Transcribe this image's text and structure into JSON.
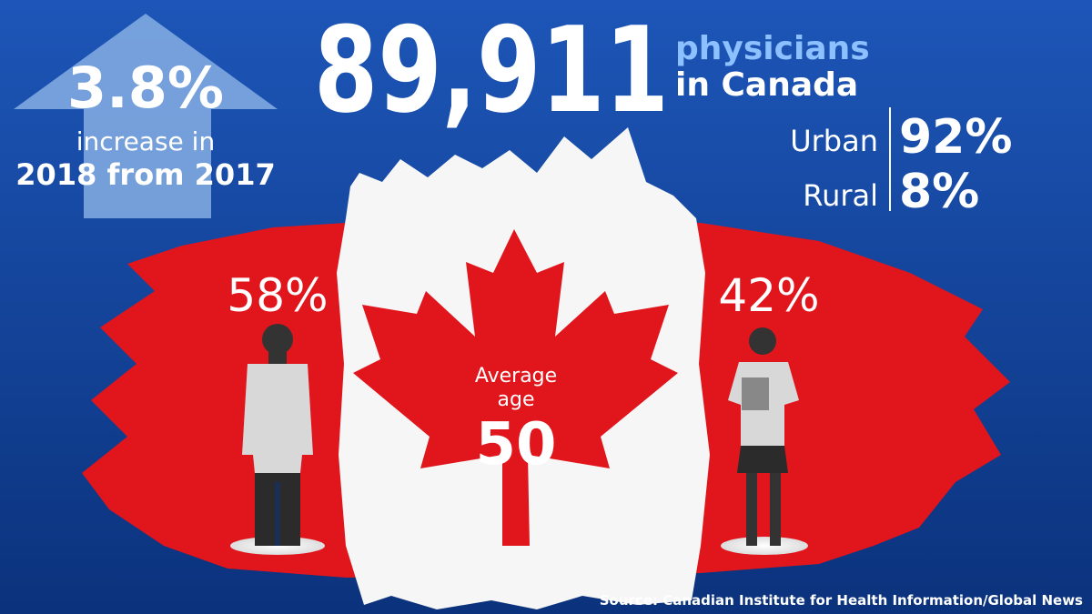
{
  "growth": {
    "value": "3.8%",
    "line1": "increase in",
    "line2": "2018 from 2017"
  },
  "total": {
    "value": "89,911",
    "label1": "physicians",
    "label2": "in Canada"
  },
  "setting": [
    {
      "label": "Urban",
      "value": "92%"
    },
    {
      "label": "Rural",
      "value": "8%"
    }
  ],
  "gender": [
    {
      "value": "58%"
    },
    {
      "value": "42%"
    }
  ],
  "age": {
    "label1": "Average",
    "label2": "age",
    "value": "50"
  },
  "source": "Source: Canadian Institute for Health Information/Global News"
}
